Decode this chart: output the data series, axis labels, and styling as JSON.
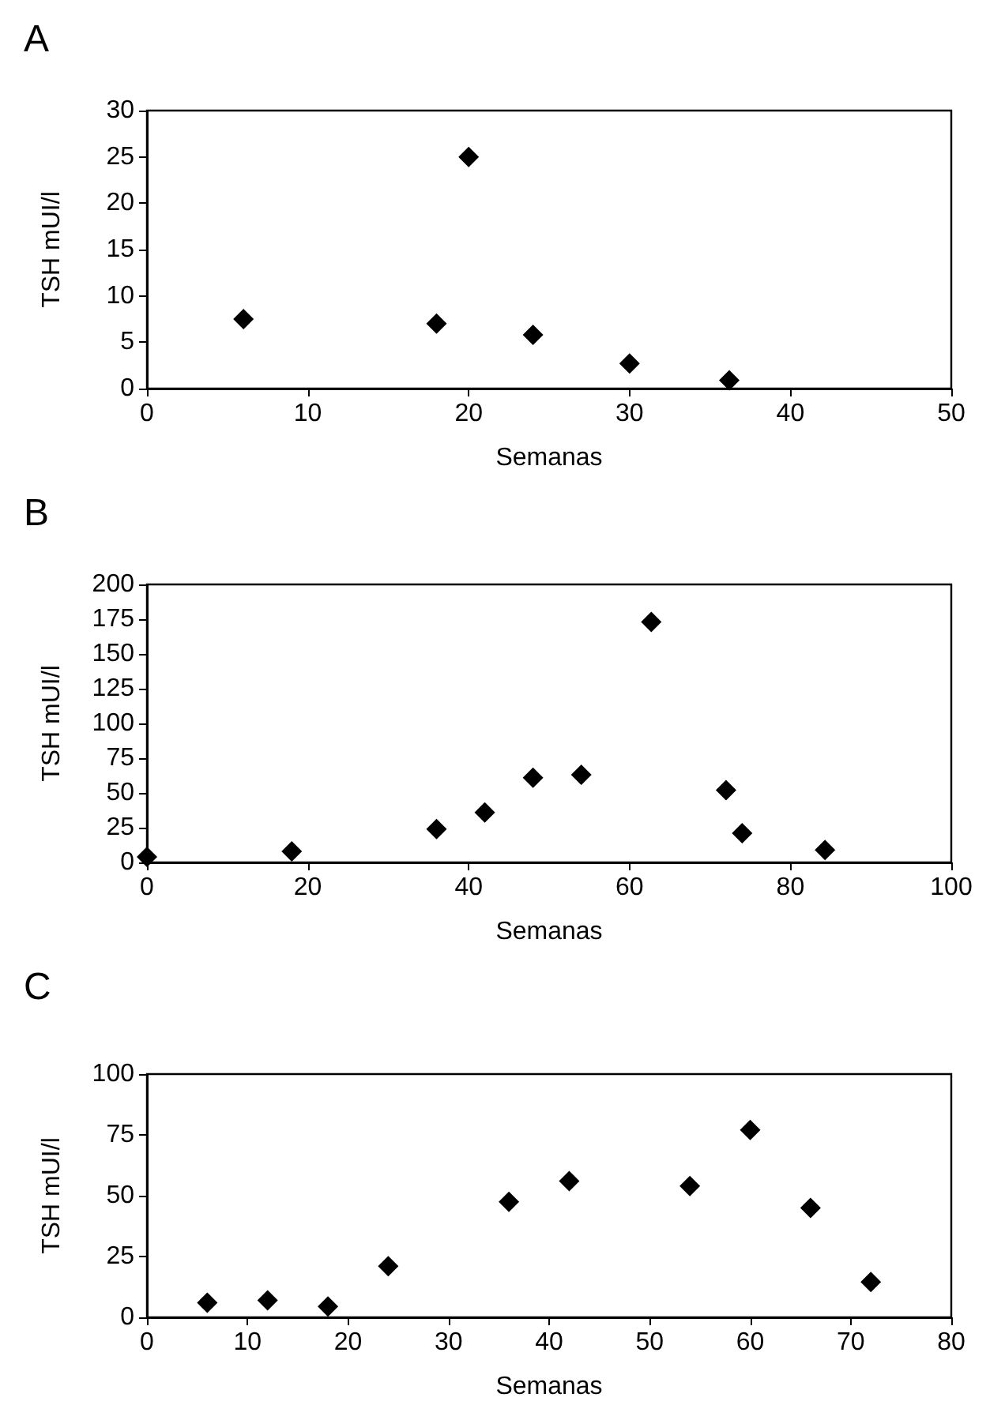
{
  "chart_data": [
    {
      "type": "scatter",
      "title": "A",
      "xlabel": "Semanas",
      "ylabel": "TSH mUI/l",
      "x": [
        6,
        18,
        20,
        24,
        30,
        36.2
      ],
      "values": [
        7.5,
        7,
        25,
        5.8,
        2.7,
        0.9
      ],
      "color": "#000000",
      "marker": "diamond",
      "xlim": [
        0,
        50
      ],
      "xticks": [
        0,
        10,
        20,
        30,
        40,
        50
      ],
      "ylim": [
        0,
        30
      ],
      "yticks": [
        0,
        5,
        10,
        15,
        20,
        25,
        30
      ],
      "grid": false
    },
    {
      "type": "scatter",
      "title": "B",
      "xlabel": "Semanas",
      "ylabel": "TSH mUI/l",
      "x": [
        0,
        18,
        36,
        42,
        48,
        54,
        62.7,
        72,
        74,
        84.3
      ],
      "values": [
        4,
        8,
        24,
        36,
        61,
        63,
        173,
        52,
        21,
        9
      ],
      "color": "#000000",
      "marker": "diamond",
      "xlim": [
        0,
        100
      ],
      "xticks": [
        0,
        20,
        40,
        60,
        80,
        100
      ],
      "ylim": [
        0,
        200
      ],
      "yticks": [
        0,
        25,
        50,
        75,
        100,
        125,
        150,
        175,
        200
      ],
      "grid": false
    },
    {
      "type": "scatter",
      "title": "C",
      "xlabel": "Semanas",
      "ylabel": "TSH mUI/l",
      "x": [
        6,
        12,
        18,
        24,
        36,
        42,
        54,
        60,
        66,
        72
      ],
      "values": [
        6,
        7,
        4.5,
        21,
        47.5,
        56,
        54,
        77,
        45,
        14.5
      ],
      "color": "#000000",
      "marker": "diamond",
      "xlim": [
        0,
        80
      ],
      "xticks": [
        0,
        10,
        20,
        30,
        40,
        50,
        60,
        70,
        80
      ],
      "ylim": [
        0,
        100
      ],
      "yticks": [
        0,
        25,
        50,
        75,
        100
      ],
      "grid": false
    }
  ]
}
